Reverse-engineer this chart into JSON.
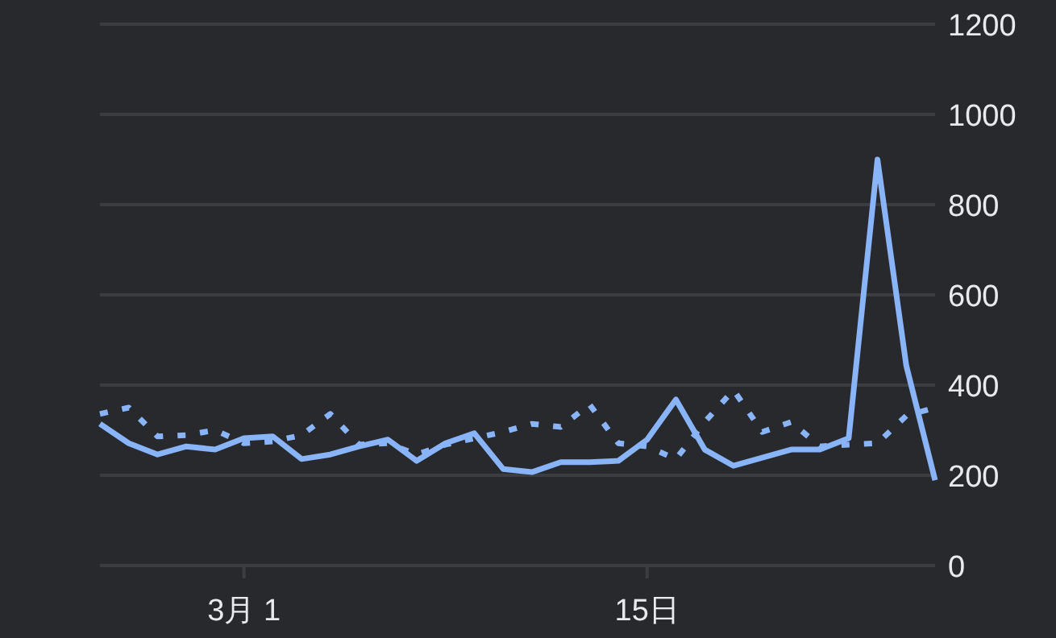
{
  "chart_data": {
    "type": "line",
    "x": [
      "--02-24",
      "--02-25",
      "--02-26",
      "--02-27",
      "--02-28",
      "--03-01",
      "--03-02",
      "--03-03",
      "--03-04",
      "--03-05",
      "--03-06",
      "--03-07",
      "--03-08",
      "--03-09",
      "--03-10",
      "--03-11",
      "--03-12",
      "--03-13",
      "--03-14",
      "--03-15",
      "--03-16",
      "--03-17",
      "--03-18",
      "--03-19",
      "--03-20",
      "--03-21",
      "--03-22",
      "--03-23",
      "--03-24",
      "--03-25"
    ],
    "series": [
      {
        "color": "#8ab4f8",
        "line_style": "dotted",
        "values": [
          336,
          350,
          286,
          289,
          300,
          271,
          275,
          289,
          336,
          268,
          271,
          246,
          268,
          282,
          296,
          314,
          307,
          357,
          271,
          264,
          236,
          318,
          389,
          296,
          318,
          264,
          268,
          271,
          332,
          350
        ]
      },
      {
        "color": "#8ab4f8",
        "line_style": "solid",
        "values": [
          314,
          271,
          246,
          264,
          257,
          282,
          286,
          236,
          246,
          264,
          279,
          232,
          271,
          293,
          214,
          207,
          229,
          229,
          232,
          279,
          368,
          257,
          221,
          239,
          257,
          257,
          282,
          900,
          443,
          189
        ]
      }
    ],
    "xlim": [
      "--02-24",
      "--03-25"
    ],
    "xticks": [
      {
        "value": "--03-01",
        "label": "3月 1"
      },
      {
        "value": "--03-15",
        "label": "15日"
      }
    ],
    "ylim": [
      0,
      1200
    ],
    "yticks": [
      0,
      200,
      400,
      600,
      800,
      1000,
      1200
    ],
    "grid": "y"
  }
}
